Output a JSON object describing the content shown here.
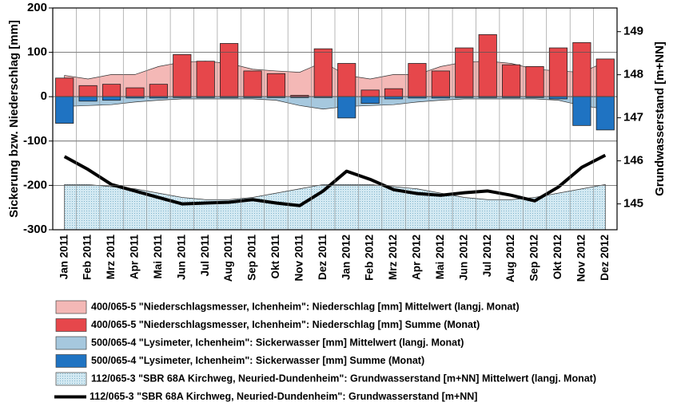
{
  "chart_data": {
    "type": "bar",
    "ylabel": "Sickerung bzw. Niederschlag [mm]",
    "y2label": "Grundwasserstand [m+NN]",
    "categories": [
      "Jan 2011",
      "Feb 2011",
      "Mrz 2011",
      "Apr 2011",
      "Mai 2011",
      "Jun 2011",
      "Jul 2011",
      "Aug 2011",
      "Sep 2011",
      "Okt 2011",
      "Nov 2011",
      "Dez 2011",
      "Jan 2012",
      "Feb 2012",
      "Mrz 2012",
      "Apr 2012",
      "Mai 2012",
      "Jun 2012",
      "Jul 2012",
      "Aug 2012",
      "Sep 2012",
      "Okt 2012",
      "Nov 2012",
      "Dez 2012"
    ],
    "ylim": [
      -300,
      200
    ],
    "yticks": [
      -300,
      -200,
      -100,
      0,
      100,
      200
    ],
    "y2lim": [
      144.4,
      149.55
    ],
    "y2ticks": [
      145,
      146,
      147,
      148,
      149
    ],
    "grid": true,
    "series": [
      {
        "name": "400/065-5 \"Niederschlagsmesser, Ichenheim\": Niederschlag [mm] Mittelwert (langj. Monat)",
        "type": "area",
        "color": "#f4b8b6",
        "values": [
          48,
          40,
          50,
          50,
          68,
          78,
          80,
          75,
          62,
          58,
          55,
          78,
          48,
          40,
          50,
          50,
          68,
          78,
          80,
          75,
          62,
          58,
          55,
          78
        ]
      },
      {
        "name": "400/065-5 \"Niederschlagsmesser, Ichenheim\": Niederschlag [mm] Summe (Monat)",
        "type": "bar",
        "color": "#e6474b",
        "values": [
          42,
          25,
          28,
          20,
          28,
          95,
          80,
          120,
          58,
          52,
          3,
          108,
          75,
          15,
          18,
          75,
          58,
          110,
          140,
          72,
          68,
          110,
          122,
          85
        ]
      },
      {
        "name": "500/065-4 \"Lysimeter, Ichenheim\": Sickerwasser [mm] Mittelwert (langj. Monat)",
        "type": "area",
        "color": "#a6c8de",
        "values": [
          -22,
          -20,
          -18,
          -12,
          -8,
          -5,
          -5,
          -5,
          -5,
          -8,
          -20,
          -28,
          -22,
          -20,
          -18,
          -12,
          -8,
          -5,
          -5,
          -5,
          -5,
          -8,
          -20,
          -28
        ]
      },
      {
        "name": "500/065-4 \"Lysimeter, Ichenheim\": Sickerwasser [mm] Summe (Monat)",
        "type": "bar",
        "color": "#1f73c2",
        "values": [
          -60,
          -10,
          -8,
          -3,
          -3,
          -2,
          -2,
          -2,
          -2,
          -2,
          -2,
          -2,
          -48,
          -15,
          -5,
          -3,
          -3,
          -2,
          -2,
          -2,
          -2,
          -5,
          -65,
          -75
        ]
      },
      {
        "name": "112/065-3 \"SBR 68A Kirchweg, Neuried-Dundenheim\": Grundwasserstand [m+NN] Mittelwert (langj. Monat)",
        "type": "area",
        "axis": "y2",
        "color": "#d3e9f2",
        "values": [
          145.45,
          145.45,
          145.4,
          145.35,
          145.25,
          145.15,
          145.1,
          145.1,
          145.15,
          145.25,
          145.35,
          145.45,
          145.45,
          145.45,
          145.4,
          145.35,
          145.25,
          145.15,
          145.1,
          145.1,
          145.15,
          145.25,
          145.35,
          145.45
        ]
      },
      {
        "name": "112/065-3 \"SBR 68A Kirchweg, Neuried-Dundenheim\": Grundwasserstand [m+NN]",
        "type": "line",
        "axis": "y2",
        "color": "#000000",
        "values": [
          146.1,
          145.8,
          145.45,
          145.3,
          145.15,
          145.0,
          145.02,
          145.04,
          145.1,
          145.02,
          144.96,
          145.3,
          145.76,
          145.57,
          145.33,
          145.24,
          145.2,
          145.26,
          145.3,
          145.2,
          145.07,
          145.39,
          145.85,
          146.13
        ]
      }
    ]
  }
}
